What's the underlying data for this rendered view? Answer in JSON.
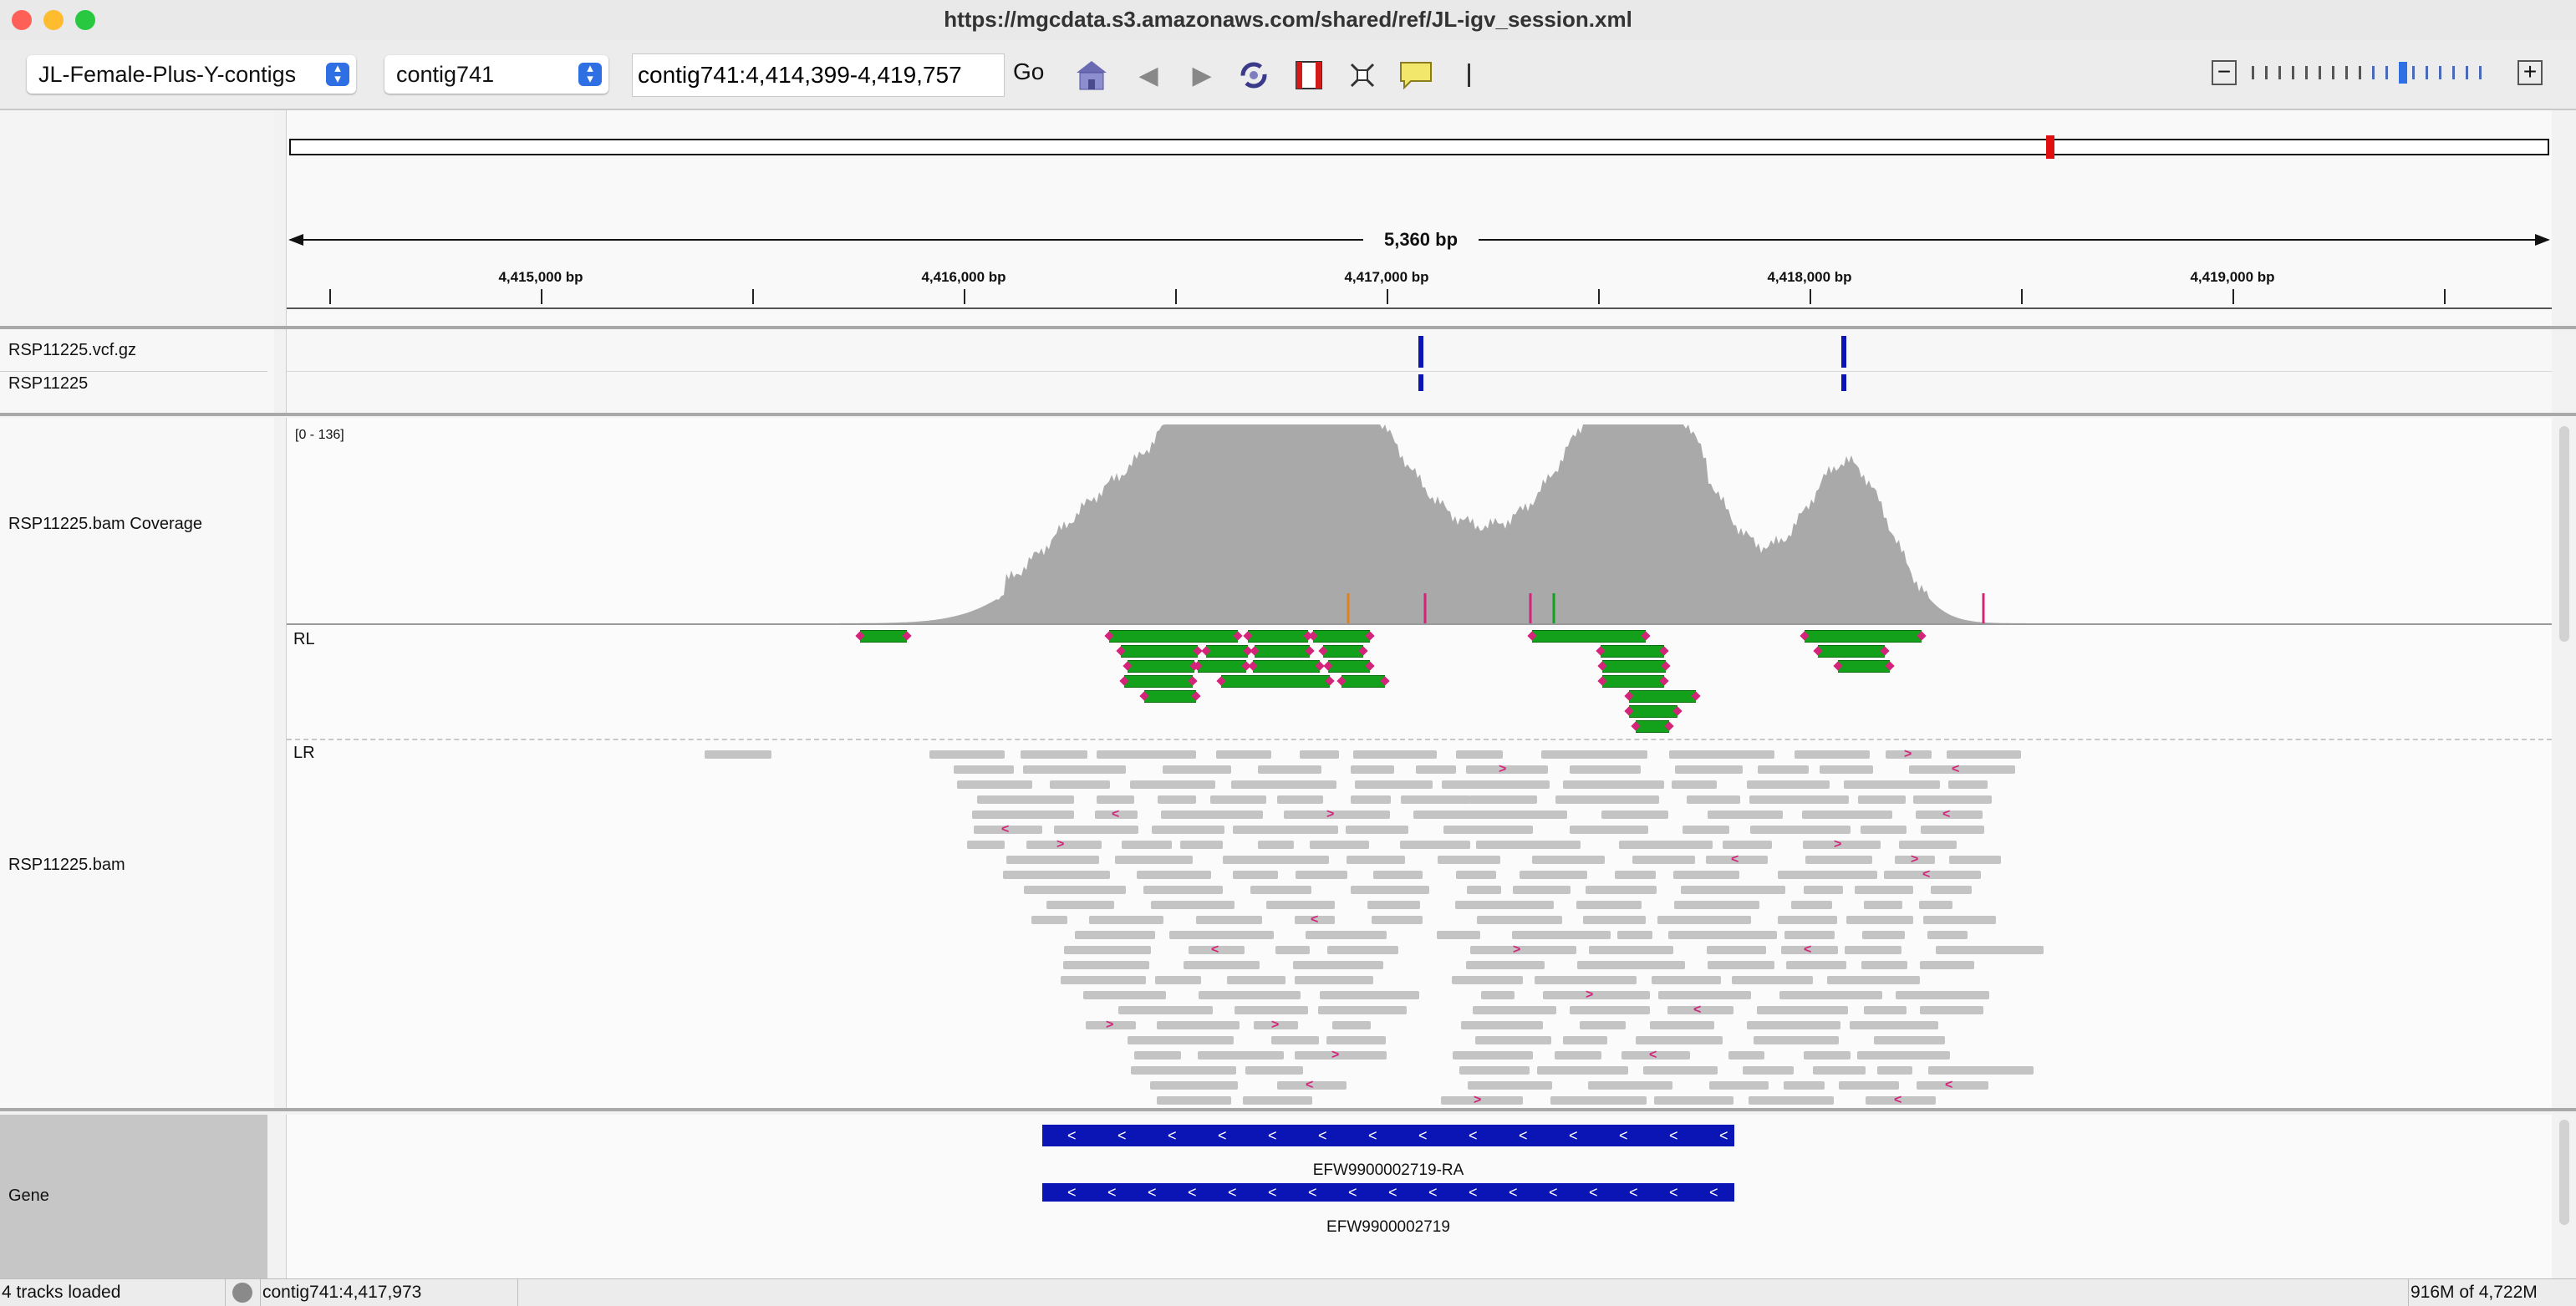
{
  "window": {
    "title": "https://mgcdata.s3.amazonaws.com/shared/ref/JL-igv_session.xml",
    "traffic_lights": [
      "#fe5f57",
      "#febc2e",
      "#28c840"
    ]
  },
  "toolbar": {
    "genome": "JL-Female-Plus-Y-contigs",
    "chromosome": "contig741",
    "locus": "contig741:4,414,399-4,419,757",
    "go_label": "Go",
    "icons": [
      "home-icon",
      "back-icon",
      "forward-icon",
      "refresh-icon",
      "roi-icon",
      "fit-icon",
      "popup-icon"
    ],
    "zoom_minus": "−",
    "zoom_plus": "+",
    "zoom_level": 0.62
  },
  "ruler": {
    "span_label": "5,360 bp",
    "tick_labels": [
      "4,415,000 bp",
      "4,416,000 bp",
      "4,417,000 bp",
      "4,418,000 bp",
      "4,419,000 bp"
    ]
  },
  "tracks": {
    "vcf_name": "RSP11225.vcf.gz",
    "sample_name": "RSP11225",
    "coverage_name": "RSP11225.bam Coverage",
    "coverage_range": "[0 - 136]",
    "bam_name": "RSP11225.bam",
    "group_rl": "RL",
    "group_lr": "LR",
    "gene_track_name": "Gene",
    "genes": [
      "EFW9900002719-RA",
      "EFW9900002719"
    ]
  },
  "colors": {
    "variant": "#0b14b5",
    "coverage": "#a9a9a9",
    "rl_read": "#13a01a",
    "insertion": "#d3247a",
    "gene": "#0b14b5",
    "region_marker": "#e01010"
  },
  "status": {
    "tracks_loaded": "4 tracks loaded",
    "position": "contig741:4,417,973",
    "memory": "916M of 4,722M"
  }
}
